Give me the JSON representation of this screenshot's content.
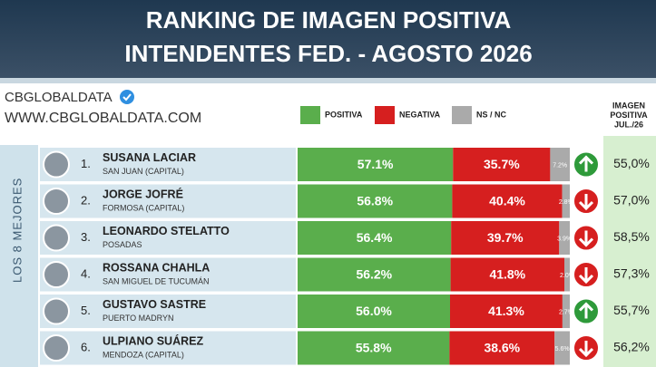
{
  "header": {
    "title_line1": "RANKING DE IMAGEN POSITIVA",
    "title_line2": "INTENDENTES FED. - AGOSTO 2026",
    "brand": "CBGLOBALDATA",
    "website": "WWW.CBGLOBALDATA.COM"
  },
  "chart_data": {
    "type": "stacked-bar",
    "group_label": "LOS 8 MEJORES",
    "prev_title": [
      "IMAGEN",
      "POSITIVA",
      "JUL./26"
    ],
    "ranks": [
      "1.",
      "2.",
      "3.",
      "4.",
      "5.",
      "6."
    ],
    "categories": [
      "SUSANA LACIAR",
      "JORGE JOFRÉ",
      "LEONARDO STELATTO",
      "ROSSANA CHAHLA",
      "GUSTAVO SASTRE",
      "ULPIANO SUÁREZ"
    ],
    "places": [
      "SAN JUAN (CAPITAL)",
      "FORMOSA (CAPITAL)",
      "POSADAS",
      "SAN MIGUEL DE TUCUMÁN",
      "PUERTO MADRYN",
      "MENDOZA (CAPITAL)"
    ],
    "xlim": [
      0,
      100
    ],
    "series": [
      {
        "name": "POSITIVA",
        "color": "#5aae4c",
        "values": [
          57.1,
          56.8,
          56.4,
          56.2,
          56.0,
          55.8
        ],
        "value_labels": [
          "57.1%",
          "56.8%",
          "56.4%",
          "56.2%",
          "56.0%",
          "55.8%"
        ]
      },
      {
        "name": "NEGATIVA",
        "color": "#d61f1f",
        "values": [
          35.7,
          40.4,
          39.7,
          41.8,
          41.3,
          38.6
        ],
        "value_labels": [
          "35.7%",
          "40.4%",
          "39.7%",
          "41.8%",
          "41.3%",
          "38.6%"
        ]
      },
      {
        "name": "NS / NC",
        "color": "#aaaaaa",
        "values": [
          7.2,
          2.8,
          3.9,
          2.0,
          2.7,
          5.6
        ],
        "value_labels": [
          "7.2%",
          "2.8%",
          "3.9%",
          "2.0%",
          "2.7%",
          "5.6%"
        ]
      }
    ],
    "trend": [
      "up",
      "down",
      "down",
      "down",
      "up",
      "down"
    ],
    "prev_values": [
      55.0,
      57.0,
      58.5,
      57.3,
      55.7,
      56.2
    ],
    "prev_labels": [
      "55,0%",
      "57,0%",
      "58,5%",
      "57,3%",
      "55,7%",
      "56,2%"
    ]
  }
}
